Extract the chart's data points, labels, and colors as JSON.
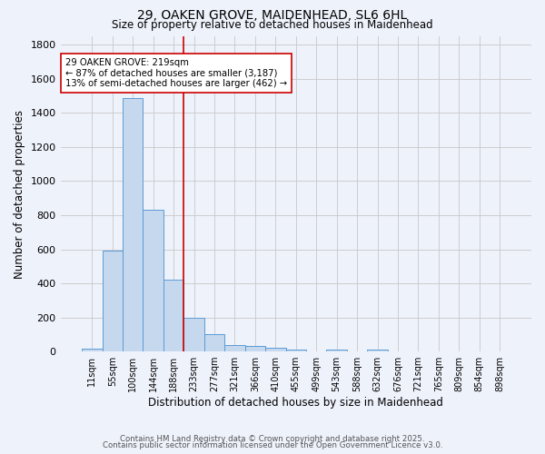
{
  "title_line1": "29, OAKEN GROVE, MAIDENHEAD, SL6 6HL",
  "title_line2": "Size of property relative to detached houses in Maidenhead",
  "xlabel": "Distribution of detached houses by size in Maidenhead",
  "ylabel": "Number of detached properties",
  "bin_labels": [
    "11sqm",
    "55sqm",
    "100sqm",
    "144sqm",
    "188sqm",
    "233sqm",
    "277sqm",
    "321sqm",
    "366sqm",
    "410sqm",
    "455sqm",
    "499sqm",
    "543sqm",
    "588sqm",
    "632sqm",
    "676sqm",
    "721sqm",
    "765sqm",
    "809sqm",
    "854sqm",
    "898sqm"
  ],
  "bar_values": [
    15,
    590,
    1490,
    830,
    420,
    200,
    100,
    37,
    30,
    20,
    10,
    0,
    13,
    0,
    10,
    0,
    0,
    0,
    0,
    0,
    0
  ],
  "bar_color": "#c5d8ee",
  "bar_edge_color": "#5b9bd5",
  "red_line_bin": 5,
  "red_line_color": "#cc0000",
  "annotation_text": "29 OAKEN GROVE: 219sqm\n← 87% of detached houses are smaller (3,187)\n13% of semi-detached houses are larger (462) →",
  "annotation_box_color": "#ffffff",
  "annotation_box_edge": "#cc0000",
  "ylim": [
    0,
    1850
  ],
  "yticks": [
    0,
    200,
    400,
    600,
    800,
    1000,
    1200,
    1400,
    1600,
    1800
  ],
  "bg_color": "#eef2fb",
  "grid_color": "#c8c8c8",
  "footer_line1": "Contains HM Land Registry data © Crown copyright and database right 2025.",
  "footer_line2": "Contains public sector information licensed under the Open Government Licence v3.0."
}
